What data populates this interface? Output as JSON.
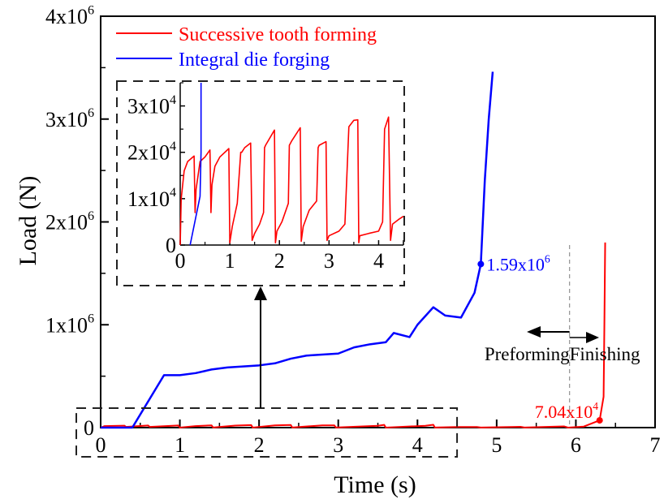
{
  "chart_data": [
    {
      "id": "main",
      "type": "line",
      "title": "",
      "xlabel": "Time (s)",
      "ylabel": "Load (N)",
      "xlim": [
        0,
        7
      ],
      "ylim": [
        0,
        4000000
      ],
      "x_ticks": [
        0,
        1,
        2,
        3,
        4,
        5,
        6,
        7
      ],
      "x_tick_labels": [
        "0",
        "1",
        "2",
        "3",
        "4",
        "5",
        "6",
        "7"
      ],
      "y_ticks": [
        0,
        1000000,
        2000000,
        3000000,
        4000000
      ],
      "y_tick_labels": [
        {
          "base": "0",
          "exp": ""
        },
        {
          "base": "1x10",
          "exp": "6"
        },
        {
          "base": "2x10",
          "exp": "6"
        },
        {
          "base": "3x10",
          "exp": "6"
        },
        {
          "base": "4x10",
          "exp": "6"
        }
      ],
      "grid": false,
      "legend_position": "top-left",
      "series": [
        {
          "name": "Successive tooth forming",
          "color": "#ff0000",
          "x": [
            0,
            0.05,
            0.3,
            0.32,
            0.6,
            0.62,
            0.98,
            1.0,
            1.2,
            1.4,
            1.42,
            1.7,
            1.9,
            1.92,
            2.2,
            2.4,
            2.42,
            2.8,
            2.95,
            2.97,
            3.5,
            3.58,
            3.6,
            4.1,
            4.2,
            4.22,
            4.5,
            4.75,
            4.8,
            5.3,
            5.35,
            5.85,
            5.9,
            6.1,
            6.3,
            6.35,
            6.36,
            6.37
          ],
          "y": [
            0,
            15000,
            19000,
            7000,
            20500,
            7000,
            21000,
            500,
            15000,
            22000,
            1000,
            20000,
            25000,
            500,
            22000,
            25500,
            800,
            22000,
            22000,
            1000,
            18000,
            27000,
            500,
            18000,
            28000,
            1000,
            6000,
            6000,
            1000,
            8000,
            1000,
            12000,
            500,
            10000,
            70400,
            300000,
            1000000,
            1800000
          ]
        },
        {
          "name": "Integral die forging",
          "color": "#0000ff",
          "x": [
            0,
            0.4,
            0.8,
            1.0,
            1.2,
            1.4,
            1.6,
            2.0,
            2.2,
            2.4,
            2.6,
            3.0,
            3.2,
            3.4,
            3.6,
            3.7,
            3.9,
            4.0,
            4.2,
            4.35,
            4.55,
            4.72,
            4.8,
            4.85,
            4.9,
            4.95
          ],
          "y": [
            0,
            0,
            510000,
            510000,
            530000,
            565000,
            585000,
            605000,
            625000,
            670000,
            700000,
            720000,
            780000,
            810000,
            830000,
            920000,
            880000,
            1000000,
            1170000,
            1090000,
            1070000,
            1310000,
            1590000,
            2400000,
            3000000,
            3460000
          ]
        }
      ],
      "annotations": [
        {
          "text_base": "1.59x10",
          "text_exp": "6",
          "x": 4.8,
          "y": 1590000,
          "color": "#0000ff",
          "marker": true
        },
        {
          "text_base": "7.04x10",
          "text_exp": "4",
          "x": 6.3,
          "y": 70400,
          "color": "#ff0000",
          "marker": true
        },
        {
          "text": "Preforming",
          "color": "#000000",
          "arrow": "left"
        },
        {
          "text": "Finishing",
          "color": "#000000",
          "arrow": "right"
        },
        {
          "divider_x": 5.92,
          "style": "dashed-gray"
        }
      ],
      "zoom_region": {
        "xlim": [
          0,
          4.5
        ],
        "label": "magnified in inset"
      }
    },
    {
      "id": "inset",
      "type": "line",
      "title": "",
      "xlabel": "",
      "ylabel": "",
      "xlim": [
        0,
        4.5
      ],
      "ylim": [
        0,
        35000
      ],
      "x_ticks": [
        0,
        1,
        2,
        3,
        4
      ],
      "x_tick_labels": [
        "0",
        "1",
        "2",
        "3",
        "4"
      ],
      "y_ticks": [
        0,
        10000,
        20000,
        30000
      ],
      "y_tick_labels": [
        {
          "base": "0",
          "exp": ""
        },
        {
          "base": "1x10",
          "exp": "4"
        },
        {
          "base": "2x10",
          "exp": "4"
        },
        {
          "base": "3x10",
          "exp": "4"
        }
      ],
      "grid": false,
      "series": [
        {
          "name": "Successive tooth forming",
          "color": "#ff0000",
          "x": [
            0,
            0.02,
            0.08,
            0.15,
            0.28,
            0.3,
            0.32,
            0.4,
            0.5,
            0.6,
            0.62,
            0.64,
            0.7,
            0.8,
            0.95,
            0.98,
            1.0,
            1.05,
            1.15,
            1.22,
            1.24,
            1.3,
            1.42,
            1.45,
            1.5,
            1.6,
            1.68,
            1.7,
            1.72,
            1.9,
            1.92,
            1.95,
            2.05,
            2.18,
            2.2,
            2.25,
            2.42,
            2.44,
            2.48,
            2.6,
            2.75,
            2.78,
            2.8,
            2.94,
            2.96,
            3.0,
            3.2,
            3.32,
            3.4,
            3.5,
            3.58,
            3.6,
            3.62,
            3.8,
            4.0,
            4.08,
            4.12,
            4.2,
            4.24,
            4.28,
            4.4,
            4.5
          ],
          "y": [
            0,
            10000,
            16000,
            18000,
            19200,
            7000,
            12000,
            18000,
            19000,
            20500,
            7000,
            13000,
            17000,
            19000,
            20500,
            20800,
            500,
            4000,
            9000,
            20000,
            20000,
            21000,
            22000,
            1000,
            2500,
            4500,
            7000,
            21000,
            21500,
            24800,
            500,
            3000,
            5000,
            9000,
            21500,
            22500,
            25300,
            800,
            4000,
            7500,
            9500,
            21000,
            21500,
            22300,
            1000,
            2000,
            3000,
            4500,
            25500,
            26900,
            27000,
            500,
            2000,
            2500,
            3000,
            5000,
            25000,
            27600,
            1000,
            4500,
            5500,
            6200
          ]
        },
        {
          "name": "Integral die forging",
          "color": "#0000ff",
          "x": [
            0.2,
            0.4,
            0.42,
            0.42
          ],
          "y": [
            0,
            10500,
            20000,
            35000
          ]
        }
      ]
    }
  ]
}
